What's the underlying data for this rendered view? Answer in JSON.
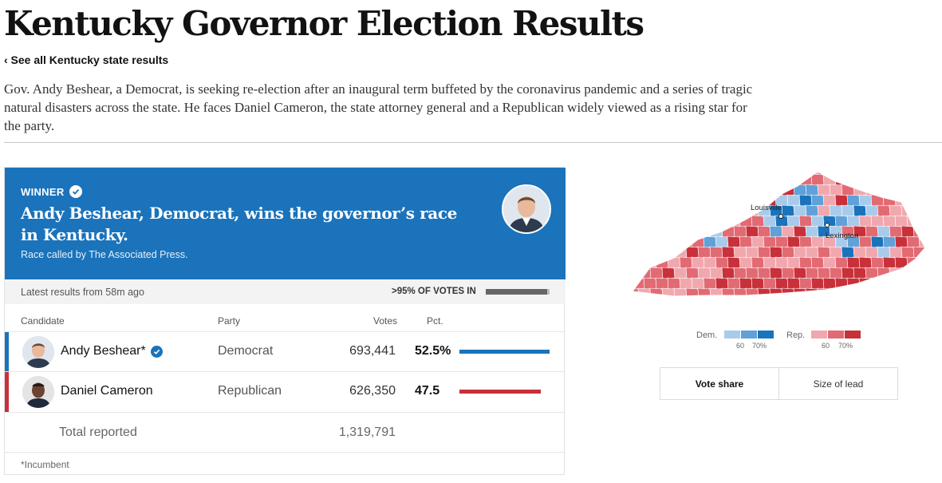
{
  "page": {
    "title": "Kentucky Governor Election Results",
    "back_link": "‹ See all Kentucky state results",
    "intro": "Gov. Andy Beshear, a Democrat, is seeking re-election after an inaugural term buffeted by the coronavirus pandemic and a series of tragic natural disasters across the state. He faces Daniel Cameron, the state attorney general and a Republican widely viewed as a rising star for the party."
  },
  "banner": {
    "winner_label": "WINNER",
    "headline": "Andy Beshear, Democrat, wins the governor’s race in Kentucky.",
    "called_by": "Race called by The Associated Press.",
    "color": "#1a73bb"
  },
  "status": {
    "latest": "Latest results from 58m ago",
    "pct_in_label": ">95% OF VOTES IN",
    "pct_in_value": 0.96
  },
  "table": {
    "headers": {
      "candidate": "Candidate",
      "party": "Party",
      "votes": "Votes",
      "pct": "Pct."
    },
    "rows": [
      {
        "name": "Andy Beshear*",
        "party": "Democrat",
        "votes": "693,441",
        "pct": "52.5%",
        "pct_value": 52.5,
        "color": "#1a73bb",
        "winner": true
      },
      {
        "name": "Daniel Cameron",
        "party": "Republican",
        "votes": "626,350",
        "pct": "47.5",
        "pct_value": 47.5,
        "color": "#c8303a",
        "winner": false
      }
    ],
    "total_label": "Total reported",
    "total_votes": "1,319,791",
    "footnote": "*Incumbent"
  },
  "map": {
    "cities": [
      "Louisville",
      "Lexington"
    ],
    "legend": {
      "dem_label": "Dem.",
      "rep_label": "Rep.",
      "dem_colors": [
        "#a9cbeb",
        "#5fa1d8",
        "#1a73bb"
      ],
      "rep_colors": [
        "#f0a8ae",
        "#e26a73",
        "#c8303a"
      ],
      "tick_60": "60",
      "tick_70": "70%"
    },
    "toggle": [
      "Vote share",
      "Size of lead"
    ]
  }
}
